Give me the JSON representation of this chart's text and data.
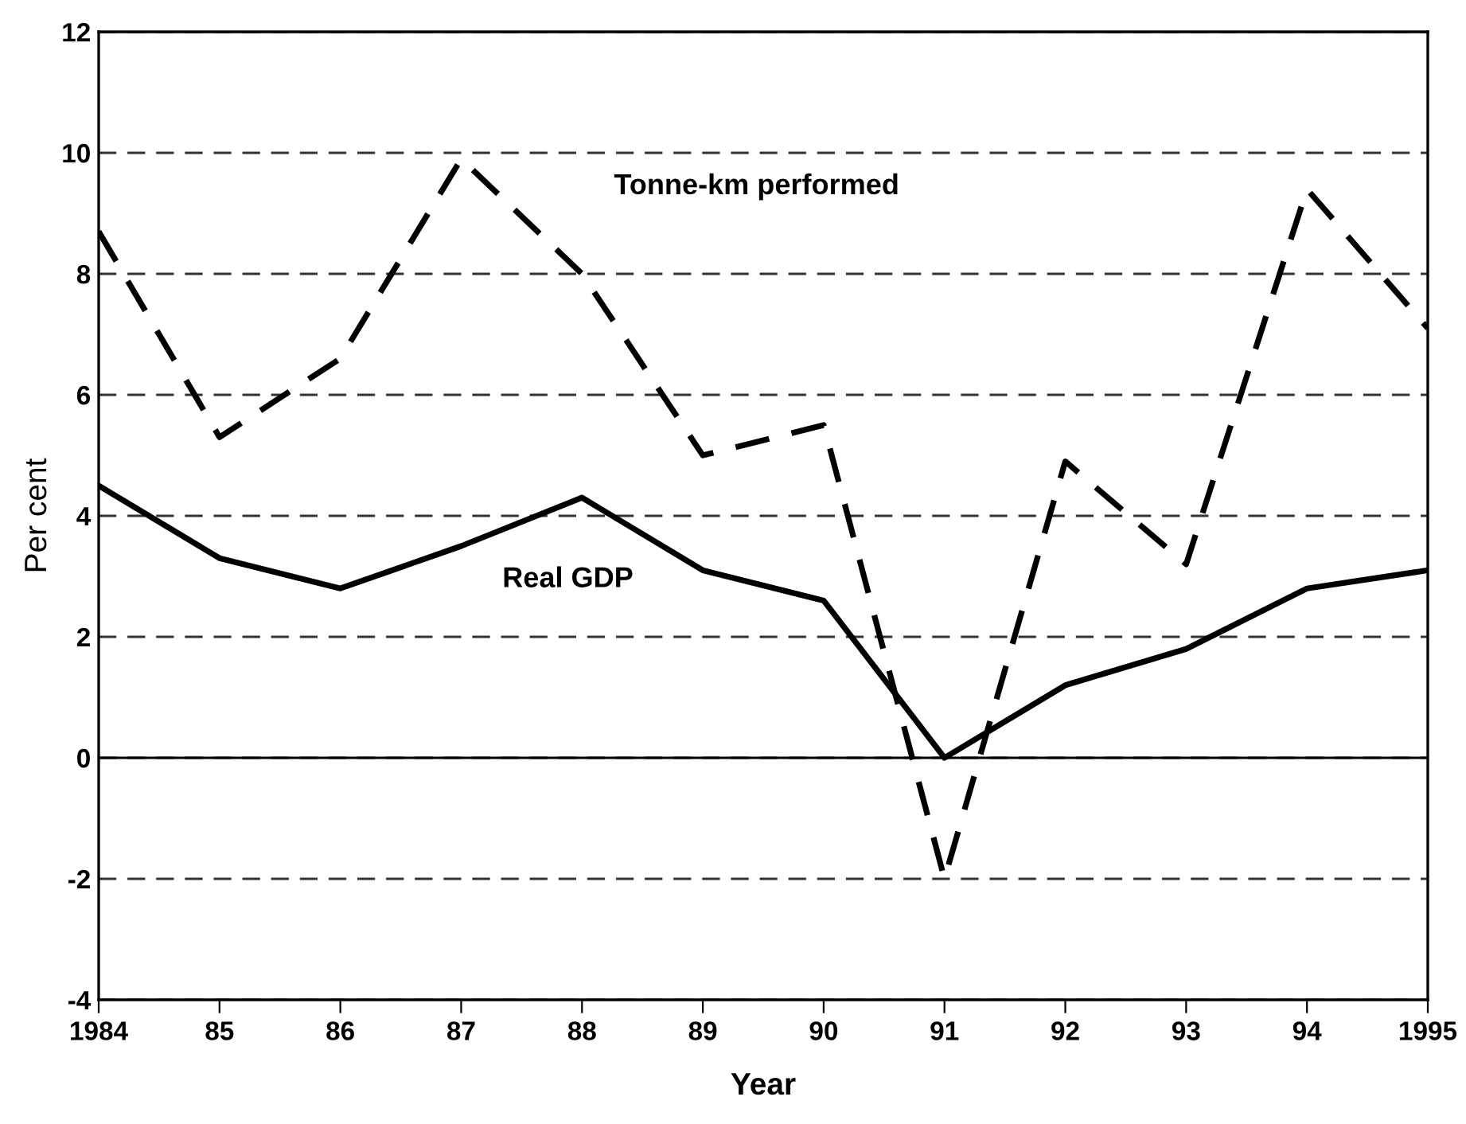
{
  "chart_data": {
    "type": "line",
    "xlabel": "Year",
    "ylabel": "Per cent",
    "x": [
      1984,
      1985,
      1986,
      1987,
      1988,
      1989,
      1990,
      1991,
      1992,
      1993,
      1994,
      1995
    ],
    "series": [
      {
        "name": "Tonne-km performed",
        "color": "#000000",
        "line_style": "dashed",
        "values": [
          8.7,
          5.3,
          6.6,
          9.9,
          8.0,
          5.0,
          5.5,
          -2.0,
          4.9,
          3.2,
          9.4,
          7.1
        ]
      },
      {
        "name": "Real GDP",
        "color": "#000000",
        "line_style": "solid",
        "values": [
          4.5,
          3.3,
          2.8,
          3.5,
          4.3,
          3.1,
          2.6,
          0.0,
          1.2,
          1.8,
          2.8,
          3.1
        ]
      }
    ],
    "xlim": [
      1984,
      1995
    ],
    "xticks": [
      1984,
      {
        "value": 1985,
        "label": "85"
      },
      {
        "value": 1986,
        "label": "86"
      },
      {
        "value": 1987,
        "label": "87"
      },
      {
        "value": 1988,
        "label": "88"
      },
      {
        "value": 1989,
        "label": "89"
      },
      {
        "value": 1990,
        "label": "90"
      },
      {
        "value": 1991,
        "label": "91"
      },
      {
        "value": 1992,
        "label": "92"
      },
      {
        "value": 1993,
        "label": "93"
      },
      {
        "value": 1994,
        "label": "94"
      },
      1995
    ],
    "ylim": [
      -4,
      12
    ],
    "yticks": [
      -4,
      -2,
      0,
      2,
      4,
      6,
      8,
      10,
      12
    ],
    "grid": "y",
    "ref_lines": [
      {
        "axis": "y",
        "value": 0,
        "line_style": "solid",
        "color": "#000000"
      }
    ],
    "marker": "none",
    "legend": false
  }
}
